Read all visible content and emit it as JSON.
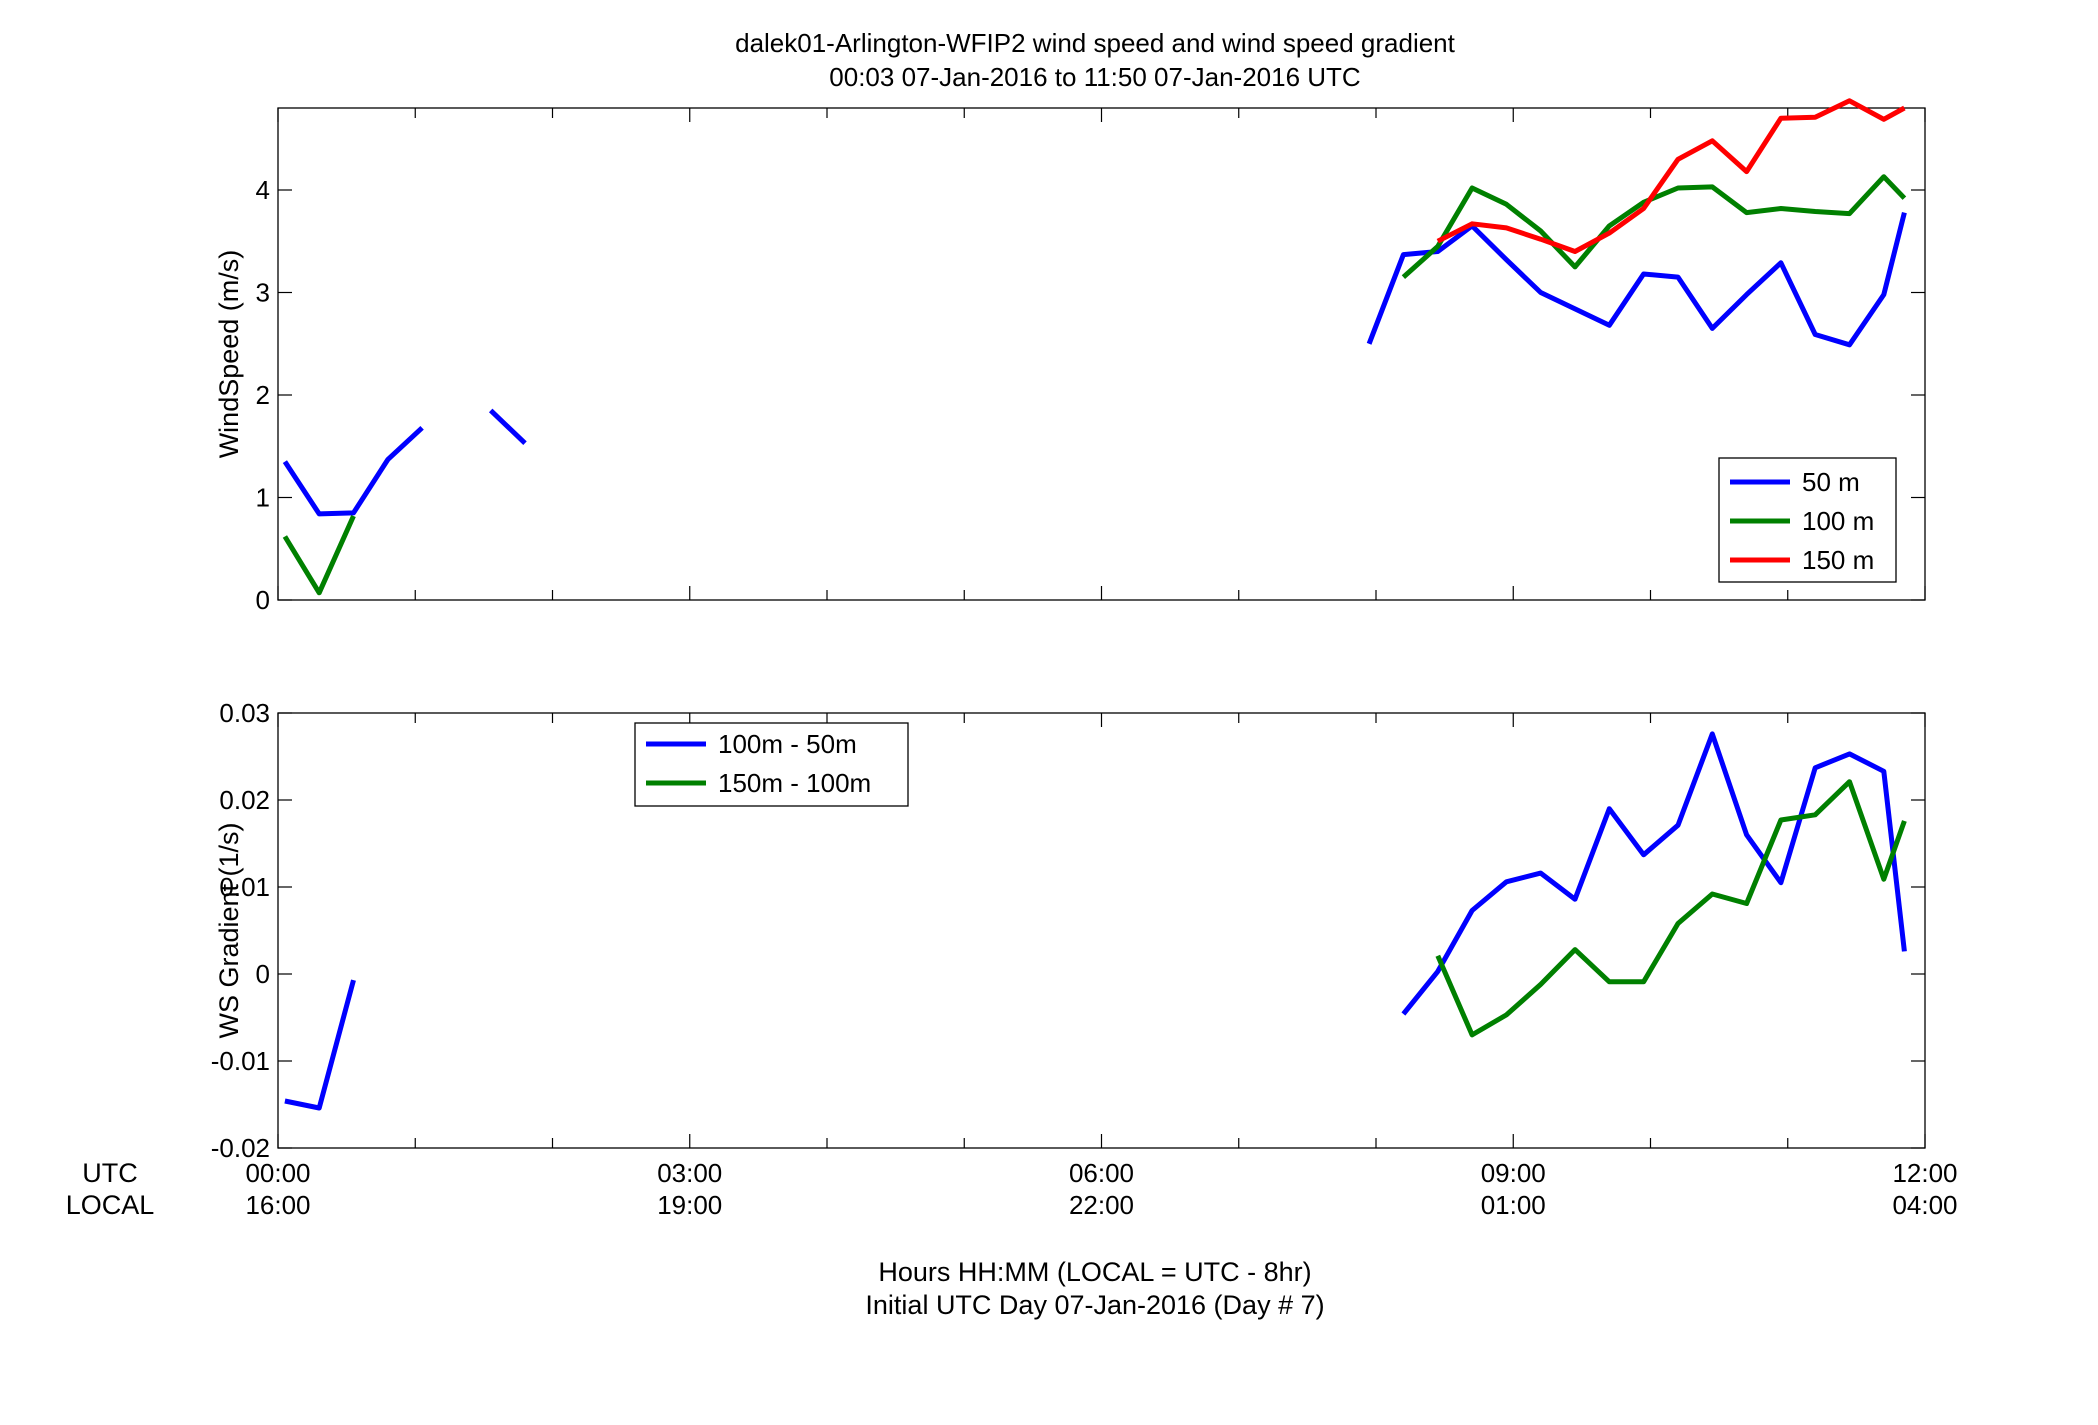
{
  "figure": {
    "title_line1": "dalek01-Arlington-WFIP2  wind speed and wind speed gradient",
    "title_line2": "00:03 07-Jan-2016 to 11:50 07-Jan-2016  UTC",
    "row_label_utc": "UTC",
    "row_label_local": "LOCAL",
    "xlabel_line1": "Hours HH:MM  (LOCAL = UTC - 8hr)",
    "xlabel_line2": "Initial UTC Day 07-Jan-2016 (Day # 7)",
    "x_ticks_utc": [
      "00:00",
      "03:00",
      "06:00",
      "09:00",
      "12:00"
    ],
    "x_ticks_local": [
      "16:00",
      "19:00",
      "22:00",
      "01:00",
      "04:00"
    ]
  },
  "chart_data": [
    {
      "type": "line",
      "ylabel": "WindSpeed (m/s)",
      "xlim": [
        0,
        12
      ],
      "ylim": [
        0,
        4.8
      ],
      "yticks": [
        "0",
        "1",
        "2",
        "3",
        "4"
      ],
      "grid": false,
      "legend_position": "bottom-right",
      "series": [
        {
          "name": "50 m",
          "color": "#0000ff",
          "segments": [
            [
              [
                0.05,
                1.35
              ],
              [
                0.3,
                0.84
              ],
              [
                0.55,
                0.85
              ],
              [
                0.8,
                1.37
              ],
              [
                1.05,
                1.68
              ]
            ],
            [
              [
                1.55,
                1.85
              ],
              [
                1.8,
                1.53
              ]
            ],
            [
              [
                7.95,
                2.5
              ],
              [
                8.2,
                3.37
              ],
              [
                8.45,
                3.4
              ],
              [
                8.7,
                3.65
              ],
              [
                8.95,
                3.32
              ],
              [
                9.2,
                3.0
              ],
              [
                9.45,
                2.84
              ],
              [
                9.7,
                2.68
              ],
              [
                9.95,
                3.18
              ],
              [
                10.2,
                3.15
              ],
              [
                10.45,
                2.65
              ],
              [
                10.7,
                2.98
              ],
              [
                10.95,
                3.29
              ],
              [
                11.2,
                2.59
              ],
              [
                11.45,
                2.49
              ],
              [
                11.7,
                2.98
              ],
              [
                11.85,
                3.78
              ]
            ]
          ]
        },
        {
          "name": "100 m",
          "color": "#008000",
          "segments": [
            [
              [
                0.05,
                0.62
              ],
              [
                0.3,
                0.07
              ],
              [
                0.55,
                0.82
              ]
            ],
            [
              [
                8.2,
                3.15
              ],
              [
                8.45,
                3.45
              ],
              [
                8.7,
                4.02
              ],
              [
                8.95,
                3.86
              ],
              [
                9.2,
                3.6
              ],
              [
                9.45,
                3.25
              ],
              [
                9.7,
                3.65
              ],
              [
                9.95,
                3.88
              ],
              [
                10.2,
                4.02
              ],
              [
                10.45,
                4.03
              ],
              [
                10.7,
                3.78
              ],
              [
                10.95,
                3.82
              ],
              [
                11.2,
                3.79
              ],
              [
                11.45,
                3.77
              ],
              [
                11.7,
                4.13
              ],
              [
                11.85,
                3.92
              ]
            ]
          ]
        },
        {
          "name": "150 m",
          "color": "#ff0000",
          "segments": [
            [
              [
                8.45,
                3.5
              ],
              [
                8.7,
                3.67
              ],
              [
                8.95,
                3.63
              ],
              [
                9.2,
                3.52
              ],
              [
                9.45,
                3.4
              ],
              [
                9.7,
                3.58
              ],
              [
                9.95,
                3.82
              ],
              [
                10.2,
                4.3
              ],
              [
                10.45,
                4.48
              ],
              [
                10.7,
                4.18
              ],
              [
                10.95,
                4.7
              ],
              [
                11.2,
                4.71
              ],
              [
                11.45,
                4.87
              ],
              [
                11.7,
                4.69
              ],
              [
                11.85,
                4.8
              ]
            ]
          ]
        }
      ]
    },
    {
      "type": "line",
      "ylabel": "WS Gradient (1/s)",
      "xlim": [
        0,
        12
      ],
      "ylim": [
        -0.02,
        0.03
      ],
      "yticks": [
        "-0.02",
        "-0.01",
        "0",
        "0.01",
        "0.02",
        "0.03"
      ],
      "grid": false,
      "legend_position": "top-left",
      "series": [
        {
          "name": "100m - 50m",
          "color": "#0000ff",
          "segments": [
            [
              [
                0.05,
                -0.0146
              ],
              [
                0.3,
                -0.0154
              ],
              [
                0.55,
                -0.0007
              ]
            ],
            [
              [
                8.2,
                -0.0046
              ],
              [
                8.45,
                0.0003
              ],
              [
                8.7,
                0.0073
              ],
              [
                8.95,
                0.0106
              ],
              [
                9.2,
                0.0116
              ],
              [
                9.45,
                0.0086
              ],
              [
                9.7,
                0.019
              ],
              [
                9.95,
                0.0137
              ],
              [
                10.2,
                0.0171
              ],
              [
                10.45,
                0.0276
              ],
              [
                10.7,
                0.016
              ],
              [
                10.95,
                0.0105
              ],
              [
                11.2,
                0.0237
              ],
              [
                11.45,
                0.0253
              ],
              [
                11.7,
                0.0233
              ],
              [
                11.85,
                0.0026
              ]
            ]
          ]
        },
        {
          "name": "150m - 100m",
          "color": "#008000",
          "segments": [
            [
              [
                8.45,
                0.0021
              ],
              [
                8.7,
                -0.007
              ],
              [
                8.95,
                -0.0047
              ],
              [
                9.2,
                -0.0012
              ],
              [
                9.45,
                0.0028
              ],
              [
                9.7,
                -0.0009
              ],
              [
                9.95,
                -0.0009
              ],
              [
                10.2,
                0.0058
              ],
              [
                10.45,
                0.0092
              ],
              [
                10.7,
                0.0081
              ],
              [
                10.95,
                0.0177
              ],
              [
                11.2,
                0.0183
              ],
              [
                11.45,
                0.0221
              ],
              [
                11.7,
                0.0109
              ],
              [
                11.85,
                0.0176
              ]
            ]
          ]
        }
      ]
    }
  ]
}
